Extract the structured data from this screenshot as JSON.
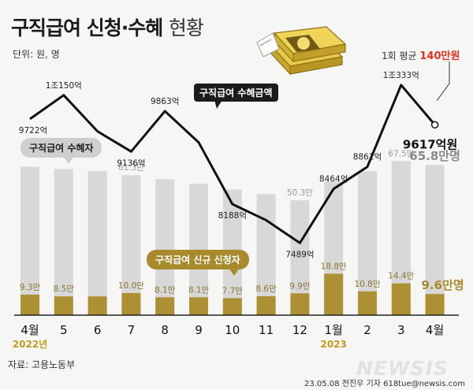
{
  "title": {
    "bold": "구직급여 신청·수혜",
    "light": "현황"
  },
  "unit": "단위: 원, 명",
  "source": "자료: 고용노동부",
  "credit": "23.05.08 전진우 기자 618tue@newsis.com",
  "logo": "NEWSIS",
  "average": {
    "prefix": "1회 평균 ",
    "value": "140만원"
  },
  "callouts": {
    "amount": "구직급여 수혜금액",
    "recipients": "구직급여 수혜자",
    "applicants": "구직급여 신규 신청자"
  },
  "colors": {
    "recipients_bar": "#d8d8d8",
    "applicants_bar": "#ad9034",
    "line": "#111111",
    "accent_red": "#e0301e",
    "applicant_label": "#8a7430"
  },
  "chart_data": {
    "type": "bar",
    "categories": [
      "4월",
      "5",
      "6",
      "7",
      "8",
      "9",
      "10",
      "11",
      "12",
      "1월",
      "2",
      "3",
      "4월"
    ],
    "year_labels": [
      {
        "index": 0,
        "text": "2022년"
      },
      {
        "index": 9,
        "text": "2023"
      }
    ],
    "series": [
      {
        "name": "구직급여 수혜자",
        "unit": "만",
        "values": [
          65.0,
          64.0,
          63.0,
          61.3,
          59.5,
          57.5,
          55.0,
          53.0,
          50.3,
          58.5,
          63.0,
          67.5,
          65.8
        ],
        "labels": [
          "",
          "",
          "",
          "61.3만",
          "",
          "",
          "",
          "",
          "50.3만",
          "",
          "",
          "67.5만",
          "65.8만명"
        ]
      },
      {
        "name": "구직급여 신규 신청자",
        "unit": "만",
        "values": [
          9.3,
          8.5,
          8.5,
          10.0,
          8.1,
          8.1,
          7.7,
          8.6,
          9.9,
          18.8,
          10.8,
          14.4,
          9.6
        ],
        "labels": [
          "9.3만",
          "8.5만",
          "",
          "10.0만",
          "8.1만",
          "8.1만",
          "7.7만",
          "8.6만",
          "9.9만",
          "18.8만",
          "10.8만",
          "14.4만",
          "9.6만명"
        ]
      },
      {
        "name": "구직급여 수혜금액",
        "unit": "억",
        "values": [
          9722,
          10150,
          9500,
          9136,
          9863,
          9300,
          8188,
          7900,
          7489,
          8464,
          8861,
          10333,
          9617
        ],
        "labels": [
          "9722억",
          "1조150억",
          "",
          "9136억",
          "9863억",
          "",
          "8188억",
          "",
          "7489억",
          "8464억",
          "8861억",
          "1조333억",
          "9617억원"
        ]
      }
    ]
  }
}
